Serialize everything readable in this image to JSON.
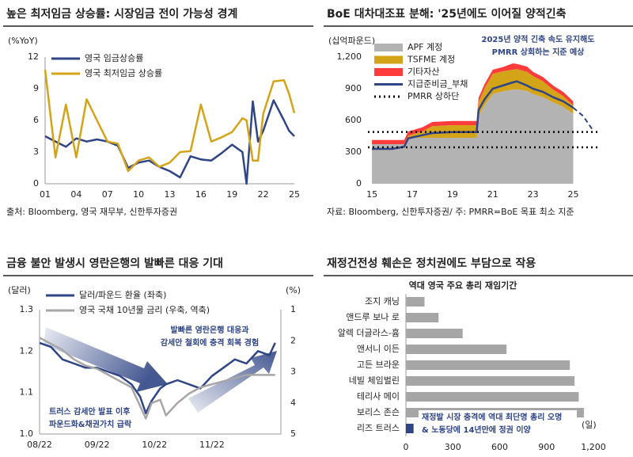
{
  "chart_data": [
    {
      "type": "line",
      "title": "높은 최저임금 상승률: 시장임금 전이 가능성 경계",
      "y_label": "(%YoY)",
      "source": "출처: Bloomberg, 영국 재무부, 신한투자증권",
      "legend": "upper left",
      "x": [
        2001,
        2002,
        2003,
        2004,
        2005,
        2006,
        2007,
        2008,
        2009,
        2010,
        2011,
        2012,
        2013,
        2014,
        2015,
        2016,
        2017,
        2018,
        2019,
        2020,
        2020.4,
        2021,
        2021.5,
        2022,
        2023,
        2024,
        2024.5,
        2025
      ],
      "xlim": [
        2001,
        2025
      ],
      "xticks": [
        {
          "value": 2001,
          "label": "01"
        },
        {
          "value": 2004,
          "label": "04"
        },
        {
          "value": 2007,
          "label": "07"
        },
        {
          "value": 2010,
          "label": "10"
        },
        {
          "value": 2013,
          "label": "13"
        },
        {
          "value": 2016,
          "label": "16"
        },
        {
          "value": 2019,
          "label": "19"
        },
        {
          "value": 2022,
          "label": "22"
        },
        {
          "value": 2025,
          "label": "25"
        }
      ],
      "ylim": [
        0,
        12
      ],
      "yticks": [
        0,
        3,
        6,
        9,
        12
      ],
      "series": [
        {
          "name": "영국 임금상승률",
          "color": "#2f4585",
          "values": [
            4.5,
            4.0,
            3.5,
            4.3,
            4.0,
            4.2,
            4.0,
            3.6,
            1.5,
            2.0,
            2.2,
            1.6,
            1.2,
            0.6,
            2.6,
            2.3,
            2.2,
            2.9,
            3.7,
            3.0,
            0.0,
            7.8,
            4.0,
            5.0,
            7.9,
            6.0,
            5.0,
            4.5
          ]
        },
        {
          "name": "영국 최저임금 상승률",
          "color": "#d4a418",
          "values": [
            10.8,
            2.5,
            7.5,
            2.5,
            8.0,
            6.0,
            4.0,
            3.8,
            1.2,
            2.2,
            2.5,
            1.6,
            2.0,
            3.0,
            3.1,
            7.5,
            4.0,
            4.4,
            4.9,
            6.2,
            6.0,
            2.2,
            2.2,
            6.6,
            9.7,
            9.8,
            8.5,
            6.7
          ]
        }
      ]
    },
    {
      "type": "stacked_area",
      "title": "BoE 대차대조표 분해: '25년에도 이어질 양적긴축",
      "y_label": "(십억파운드)",
      "source": "자료: Bloomberg, 신한투자증권/ 주: PMRR=BoE 목표 최소 지준",
      "annotation": [
        "2025년 양적 긴축 속도 유지해도",
        "PMRR 상회하는 지준 예상"
      ],
      "legend": "upper left",
      "x": [
        2015,
        2016,
        2016.6,
        2016.8,
        2017.5,
        2018,
        2019,
        2020.2,
        2020.3,
        2020.6,
        2021,
        2021.5,
        2022,
        2022.2,
        2022.7,
        2023,
        2023.5,
        2024,
        2024.5,
        2025
      ],
      "xlim": [
        2014.8,
        2026.2
      ],
      "xticks": [
        {
          "value": 2015,
          "label": "15"
        },
        {
          "value": 2017,
          "label": "17"
        },
        {
          "value": 2019,
          "label": "19"
        },
        {
          "value": 2021,
          "label": "21"
        },
        {
          "value": 2023,
          "label": "23"
        },
        {
          "value": 2025,
          "label": "25"
        }
      ],
      "ylim": [
        0,
        1200
      ],
      "yticks": [
        0,
        300,
        600,
        900,
        {
          "value": 1200,
          "label": "1,200"
        }
      ],
      "series": [
        {
          "name": "APF 계정",
          "color": "#b3b3b3",
          "style": "area",
          "values": [
            375,
            375,
            375,
            435,
            435,
            435,
            435,
            435,
            645,
            745,
            850,
            875,
            890,
            895,
            880,
            850,
            820,
            770,
            730,
            660
          ]
        },
        {
          "name": "TSFME 계정",
          "color": "#d4a418",
          "style": "area",
          "values": [
            0,
            0,
            0,
            20,
            60,
            110,
            120,
            120,
            130,
            160,
            190,
            190,
            190,
            190,
            180,
            170,
            150,
            120,
            100,
            80
          ]
        },
        {
          "name": "기타자산",
          "color": "#ff3b3b",
          "style": "area",
          "values": [
            40,
            40,
            40,
            40,
            40,
            40,
            40,
            40,
            40,
            40,
            40,
            40,
            60,
            50,
            50,
            40,
            40,
            40,
            40,
            40
          ]
        },
        {
          "name": "지급준비금_부채",
          "color": "#2f4585",
          "style": "line",
          "values": [
            330,
            330,
            350,
            430,
            460,
            480,
            490,
            490,
            700,
            800,
            900,
            930,
            960,
            970,
            930,
            900,
            870,
            820,
            780,
            720
          ],
          "forecast": {
            "x": [
              2025,
              2025.5,
              2026
            ],
            "values": [
              720,
              640,
              500
            ]
          }
        },
        {
          "name": "PMRR 상하단",
          "color": "#000000",
          "style": "dotted",
          "levels": [
            490,
            345
          ]
        }
      ]
    },
    {
      "type": "line",
      "title": "금융 불안 발생시 영란은행의 발빠른 대응 기대",
      "y_label": "(달러)",
      "y2_label": "(%)",
      "legend": "top left",
      "annotations": [
        [
          "발빠른 영란은행 대응과",
          "감세안 철회에 충격 회복 경험"
        ],
        [
          "트러스 감세안 발표 이후",
          "파운드화&채권가치 급락"
        ]
      ],
      "x": [
        0,
        0.2,
        0.4,
        0.6,
        0.8,
        1.0,
        1.2,
        1.4,
        1.6,
        1.75,
        1.85,
        1.95,
        2.1,
        2.2,
        2.4,
        2.6,
        2.8,
        3.0,
        3.2,
        3.4,
        3.6,
        3.8,
        4.0,
        4.1
      ],
      "xlim": [
        0,
        4.2
      ],
      "xticks": [
        {
          "value": 0,
          "label": "08/22"
        },
        {
          "value": 1,
          "label": "09/22"
        },
        {
          "value": 2,
          "label": "10/22"
        },
        {
          "value": 3,
          "label": "11/22"
        }
      ],
      "ylim": [
        1.0,
        1.3
      ],
      "yticks": [
        {
          "value": 1,
          "label": "1.0"
        },
        1.1,
        1.2,
        1.3
      ],
      "y2lim": [
        5,
        1
      ],
      "y2ticks": [
        1,
        2,
        3,
        4,
        5
      ],
      "series": [
        {
          "name": "달러/파운드 환율 (좌축)",
          "color": "#2f4585",
          "values": [
            1.22,
            1.21,
            1.18,
            1.17,
            1.16,
            1.16,
            1.15,
            1.14,
            1.12,
            1.09,
            1.05,
            1.08,
            1.11,
            1.12,
            1.13,
            1.12,
            1.11,
            1.14,
            1.16,
            1.18,
            1.17,
            1.2,
            1.19,
            1.22
          ]
        },
        {
          "name": "영국 국채 10년물 금리 (우축, 역축)",
          "color": "#a6a6a6",
          "axis": "y2",
          "values": [
            1.9,
            2.1,
            2.3,
            2.6,
            2.8,
            2.9,
            3.1,
            3.3,
            3.5,
            4.1,
            4.5,
            4.0,
            3.9,
            4.4,
            4.0,
            3.7,
            3.5,
            3.4,
            3.3,
            3.2,
            3.1,
            3.1,
            3.1,
            3.1
          ]
        }
      ]
    },
    {
      "type": "bar",
      "orientation": "horizontal",
      "title": "재정건전성 훼손은 정치권에도 부담으로 작용",
      "subtitle": "역대 영국 주요 총리 재임기간",
      "x_label": "(일)",
      "annotation": [
        "재정발 시장 충격에 역대 최단명 총리 오명",
        "& 노동당에 14년만에 정권 이양"
      ],
      "categories": [
        "조지 캐닝",
        "앤드루 보나 로",
        "알렉 더글라스-흄",
        "앤서니 이든",
        "고든 브라운",
        "네빌 체임벌린",
        "테리사 메이",
        "보리스 존슨",
        "리즈 트러스"
      ],
      "values": [
        119,
        209,
        363,
        644,
        1049,
        1079,
        1106,
        1139,
        49
      ],
      "colors": [
        "#a6a6a6",
        "#a6a6a6",
        "#a6a6a6",
        "#a6a6a6",
        "#a6a6a6",
        "#a6a6a6",
        "#a6a6a6",
        "#a6a6a6",
        "#2f4585"
      ],
      "xlim": [
        0,
        1200
      ],
      "xticks": [
        0,
        300,
        600,
        900,
        {
          "value": 1200,
          "label": "1,200"
        }
      ]
    }
  ]
}
